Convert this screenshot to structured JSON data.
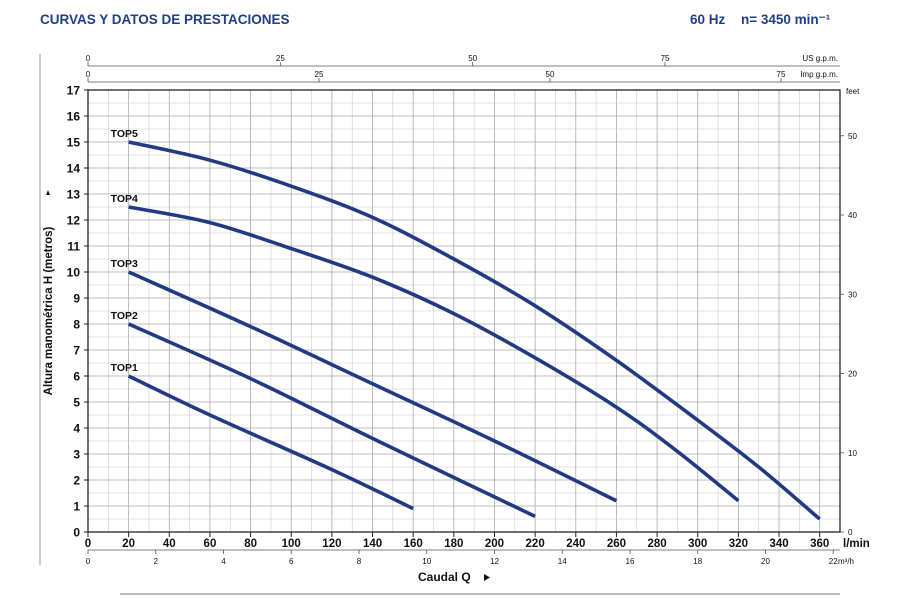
{
  "header": {
    "title": "CURVAS Y DATOS DE PRESTACIONES",
    "frequency": "60 Hz",
    "speed": "n= 3450 min⁻¹"
  },
  "chart_data": {
    "type": "line",
    "ylabel": "Altura manométrica H (metros)",
    "xlabel": "Caudal Q",
    "x_unit": "l/min",
    "xlim": [
      0,
      370
    ],
    "ylim": [
      0,
      17
    ],
    "grid": true,
    "x_ticks": [
      0,
      20,
      40,
      60,
      80,
      100,
      120,
      140,
      160,
      180,
      200,
      220,
      240,
      260,
      280,
      300,
      320,
      340,
      360
    ],
    "y_ticks": [
      0,
      1,
      2,
      3,
      4,
      5,
      6,
      7,
      8,
      9,
      10,
      11,
      12,
      13,
      14,
      15,
      16,
      17
    ],
    "secondary_axes": {
      "us_gpm": {
        "unit": "US g.p.m.",
        "ticks": [
          0,
          25,
          50,
          75
        ]
      },
      "imp_gpm": {
        "unit": "Imp g.p.m.",
        "ticks": [
          0,
          25,
          50,
          75
        ]
      },
      "m3h": {
        "unit": "m³/h",
        "ticks": [
          0,
          2,
          4,
          6,
          8,
          10,
          12,
          14,
          16,
          18,
          20,
          22
        ]
      },
      "feet": {
        "unit": "feet",
        "ticks": [
          0,
          10,
          20,
          30,
          40,
          50
        ]
      }
    },
    "series": [
      {
        "name": "TOP5",
        "x": [
          20,
          60,
          100,
          140,
          180,
          220,
          260,
          300,
          330,
          360
        ],
        "y": [
          15,
          14.3,
          13.3,
          12.1,
          10.5,
          8.7,
          6.6,
          4.3,
          2.5,
          0.5
        ]
      },
      {
        "name": "TOP4",
        "x": [
          20,
          60,
          100,
          140,
          180,
          220,
          260,
          290,
          320
        ],
        "y": [
          12.5,
          11.9,
          10.9,
          9.8,
          8.4,
          6.7,
          4.8,
          3.1,
          1.2
        ]
      },
      {
        "name": "TOP3",
        "x": [
          20,
          80,
          140,
          200,
          260
        ],
        "y": [
          10,
          7.9,
          5.7,
          3.5,
          1.2
        ]
      },
      {
        "name": "TOP2",
        "x": [
          20,
          80,
          140,
          220
        ],
        "y": [
          8,
          5.9,
          3.6,
          0.6
        ]
      },
      {
        "name": "TOP1",
        "x": [
          20,
          60,
          120,
          160
        ],
        "y": [
          6,
          4.5,
          2.4,
          0.9
        ]
      }
    ],
    "line_color": "#223a82"
  }
}
